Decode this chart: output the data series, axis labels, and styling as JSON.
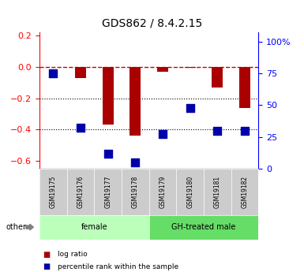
{
  "title": "GDS862 / 8.4.2.15",
  "samples": [
    "GSM19175",
    "GSM19176",
    "GSM19177",
    "GSM19178",
    "GSM19179",
    "GSM19180",
    "GSM19181",
    "GSM19182"
  ],
  "log_ratio": [
    0.0,
    -0.07,
    -0.37,
    -0.44,
    -0.03,
    -0.005,
    -0.13,
    -0.26
  ],
  "percentile_rank": [
    75,
    32,
    12,
    5,
    27,
    48,
    30,
    30
  ],
  "bar_color": "#aa0000",
  "dot_color": "#0000aa",
  "ref_line_color": "#cc0000",
  "ylim_left": [
    -0.65,
    0.22
  ],
  "ylim_right": [
    0,
    107
  ],
  "yticks_left": [
    0.2,
    0.0,
    -0.2,
    -0.4,
    -0.6
  ],
  "yticks_right": [
    100,
    75,
    50,
    25,
    0
  ],
  "ytick_labels_right": [
    "100%",
    "75",
    "50",
    "25",
    "0"
  ],
  "groups": [
    {
      "label": "female",
      "samples": [
        0,
        1,
        2,
        3
      ],
      "color": "#bbffbb"
    },
    {
      "label": "GH-treated male",
      "samples": [
        4,
        5,
        6,
        7
      ],
      "color": "#66dd66"
    }
  ],
  "other_label": "other",
  "legend_log_ratio": "log ratio",
  "legend_percentile": "percentile rank within the sample",
  "bar_width": 0.4,
  "dot_size": 50
}
